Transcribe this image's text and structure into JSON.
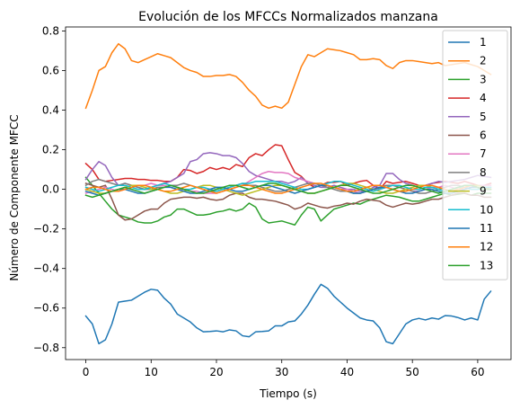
{
  "chart_data": {
    "type": "line",
    "title": "Evolución de los MFCCs Normalizados manzana",
    "xlabel": "Tiempo (s)",
    "ylabel": "Número de Componente MFCC",
    "xlim": [
      -3.1,
      65.1
    ],
    "ylim": [
      -0.86,
      0.82
    ],
    "xticks": [
      0,
      10,
      20,
      30,
      40,
      50,
      60
    ],
    "yticks": [
      -0.8,
      -0.6,
      -0.4,
      -0.2,
      0.0,
      0.2,
      0.4,
      0.6,
      0.8
    ],
    "ytick_labels": [
      "−0.8",
      "−0.6",
      "−0.4",
      "−0.2",
      "0.0",
      "0.2",
      "0.4",
      "0.6",
      "0.8"
    ],
    "legend_position": "upper right",
    "grid": false,
    "x": [
      0,
      1,
      2,
      3,
      4,
      5,
      6,
      7,
      8,
      9,
      10,
      11,
      12,
      13,
      14,
      15,
      16,
      17,
      18,
      19,
      20,
      21,
      22,
      23,
      24,
      25,
      26,
      27,
      28,
      29,
      30,
      31,
      32,
      33,
      34,
      35,
      36,
      37,
      38,
      39,
      40,
      41,
      42,
      43,
      44,
      45,
      46,
      47,
      48,
      49,
      50,
      51,
      52,
      53,
      54,
      55,
      56,
      57,
      58,
      59,
      60,
      61,
      62
    ],
    "series": [
      {
        "name": "1",
        "color": "#1f77b4",
        "values": [
          -0.64,
          -0.68,
          -0.78,
          -0.76,
          -0.68,
          -0.57,
          -0.565,
          -0.56,
          -0.54,
          -0.52,
          -0.505,
          -0.51,
          -0.55,
          -0.58,
          -0.63,
          -0.65,
          -0.67,
          -0.7,
          -0.72,
          -0.718,
          -0.715,
          -0.72,
          -0.71,
          -0.715,
          -0.74,
          -0.745,
          -0.72,
          -0.718,
          -0.715,
          -0.69,
          -0.69,
          -0.67,
          -0.665,
          -0.63,
          -0.585,
          -0.53,
          -0.48,
          -0.5,
          -0.54,
          -0.57,
          -0.6,
          -0.625,
          -0.65,
          -0.66,
          -0.665,
          -0.7,
          -0.77,
          -0.78,
          -0.73,
          -0.68,
          -0.66,
          -0.652,
          -0.66,
          -0.65,
          -0.656,
          -0.638,
          -0.64,
          -0.648,
          -0.66,
          -0.65,
          -0.66,
          -0.555,
          -0.515
        ]
      },
      {
        "name": "2",
        "color": "#ff7f0e",
        "values": [
          0.41,
          0.5,
          0.6,
          0.62,
          0.69,
          0.735,
          0.71,
          0.65,
          0.64,
          0.655,
          0.67,
          0.685,
          0.675,
          0.665,
          0.64,
          0.615,
          0.6,
          0.59,
          0.57,
          0.57,
          0.575,
          0.575,
          0.58,
          0.57,
          0.54,
          0.5,
          0.47,
          0.425,
          0.41,
          0.42,
          0.41,
          0.44,
          0.53,
          0.62,
          0.68,
          0.67,
          0.69,
          0.71,
          0.705,
          0.7,
          0.69,
          0.68,
          0.655,
          0.655,
          0.66,
          0.655,
          0.625,
          0.61,
          0.64,
          0.65,
          0.65,
          0.645,
          0.64,
          0.635,
          0.64,
          0.625,
          0.63,
          0.635,
          0.64,
          0.63,
          0.62,
          0.6,
          0.58
        ]
      },
      {
        "name": "3",
        "color": "#2ca02c",
        "values": [
          0.06,
          0.02,
          -0.02,
          -0.06,
          -0.1,
          -0.13,
          -0.14,
          -0.15,
          -0.165,
          -0.17,
          -0.17,
          -0.16,
          -0.14,
          -0.13,
          -0.1,
          -0.1,
          -0.115,
          -0.13,
          -0.13,
          -0.125,
          -0.115,
          -0.11,
          -0.1,
          -0.11,
          -0.1,
          -0.07,
          -0.09,
          -0.15,
          -0.17,
          -0.165,
          -0.16,
          -0.17,
          -0.18,
          -0.13,
          -0.09,
          -0.1,
          -0.16,
          -0.13,
          -0.1,
          -0.09,
          -0.08,
          -0.07,
          -0.075,
          -0.06,
          -0.05,
          -0.04,
          -0.03,
          -0.035,
          -0.04,
          -0.05,
          -0.06,
          -0.06,
          -0.05,
          -0.04,
          -0.03,
          -0.02,
          -0.03,
          -0.025,
          -0.02,
          -0.03,
          -0.02,
          -0.02,
          -0.02
        ]
      },
      {
        "name": "4",
        "color": "#d62728",
        "values": [
          0.13,
          0.1,
          0.05,
          0.04,
          0.045,
          0.05,
          0.055,
          0.055,
          0.05,
          0.05,
          0.045,
          0.045,
          0.04,
          0.04,
          0.06,
          0.1,
          0.095,
          0.08,
          0.09,
          0.11,
          0.1,
          0.11,
          0.1,
          0.125,
          0.115,
          0.16,
          0.18,
          0.17,
          0.2,
          0.225,
          0.22,
          0.15,
          0.085,
          0.065,
          0.03,
          0.01,
          0.02,
          0.035,
          0.035,
          0.04,
          0.02,
          0.03,
          0.04,
          0.045,
          0.02,
          0.0,
          0.04,
          0.03,
          0.035,
          0.04,
          0.03,
          0.02,
          0.02,
          0.03,
          0.035,
          0.04,
          0.035,
          0.03,
          0.04,
          0.03,
          0.02,
          0.02,
          0.03
        ]
      },
      {
        "name": "5",
        "color": "#9467bd",
        "values": [
          0.05,
          0.1,
          0.14,
          0.12,
          0.06,
          0.02,
          0.03,
          0.02,
          0.01,
          0.0,
          0.01,
          0.02,
          0.03,
          0.04,
          0.06,
          0.08,
          0.14,
          0.15,
          0.18,
          0.185,
          0.18,
          0.17,
          0.17,
          0.16,
          0.13,
          0.09,
          0.07,
          0.06,
          0.05,
          0.04,
          0.04,
          0.03,
          0.04,
          0.06,
          0.03,
          0.02,
          0.01,
          0.01,
          0.02,
          0.01,
          0.0,
          0.0,
          -0.01,
          -0.01,
          0.01,
          0.02,
          0.08,
          0.08,
          0.05,
          0.03,
          0.02,
          0.01,
          0.02,
          0.03,
          0.04,
          0.035,
          0.04,
          0.045,
          0.05,
          0.06,
          0.07,
          0.065,
          0.06
        ]
      },
      {
        "name": "6",
        "color": "#8c564b",
        "values": [
          0.03,
          0.02,
          0.01,
          0.02,
          -0.05,
          -0.13,
          -0.155,
          -0.15,
          -0.13,
          -0.11,
          -0.1,
          -0.1,
          -0.07,
          -0.05,
          -0.045,
          -0.04,
          -0.04,
          -0.045,
          -0.04,
          -0.05,
          -0.055,
          -0.05,
          -0.03,
          -0.02,
          -0.02,
          -0.04,
          -0.05,
          -0.05,
          -0.055,
          -0.06,
          -0.07,
          -0.08,
          -0.1,
          -0.09,
          -0.07,
          -0.08,
          -0.09,
          -0.095,
          -0.085,
          -0.08,
          -0.07,
          -0.075,
          -0.06,
          -0.05,
          -0.055,
          -0.06,
          -0.08,
          -0.09,
          -0.08,
          -0.07,
          -0.075,
          -0.07,
          -0.06,
          -0.05,
          -0.05,
          -0.04,
          -0.03,
          -0.02,
          -0.02,
          -0.03,
          -0.03,
          -0.04,
          -0.04
        ]
      },
      {
        "name": "7",
        "color": "#e377c2",
        "values": [
          -0.02,
          -0.01,
          0.0,
          0.01,
          0.0,
          -0.01,
          0.0,
          0.01,
          0.02,
          0.02,
          0.03,
          0.02,
          0.02,
          0.01,
          0.0,
          0.0,
          -0.01,
          -0.01,
          -0.02,
          -0.02,
          -0.02,
          -0.01,
          0.0,
          0.01,
          0.02,
          0.04,
          0.06,
          0.08,
          0.09,
          0.085,
          0.085,
          0.08,
          0.06,
          0.05,
          0.04,
          0.03,
          0.02,
          0.01,
          0.01,
          0.0,
          0.0,
          -0.01,
          -0.02,
          -0.01,
          0.0,
          0.0,
          0.01,
          0.02,
          0.01,
          0.0,
          -0.01,
          -0.01,
          0.0,
          0.01,
          0.01,
          0.02,
          0.01,
          0.0,
          0.0,
          0.01,
          0.02,
          0.02,
          0.02
        ]
      },
      {
        "name": "8",
        "color": "#7f7f7f",
        "values": [
          0.02,
          0.04,
          0.05,
          0.04,
          0.03,
          0.02,
          0.03,
          0.02,
          0.01,
          0.0,
          0.0,
          0.01,
          0.01,
          0.02,
          0.02,
          0.03,
          0.02,
          0.01,
          0.0,
          -0.01,
          -0.01,
          0.0,
          0.01,
          0.02,
          0.03,
          0.02,
          0.02,
          0.01,
          0.0,
          -0.01,
          -0.01,
          0.0,
          0.01,
          0.02,
          0.03,
          0.03,
          0.02,
          0.01,
          0.0,
          -0.01,
          -0.01,
          -0.02,
          -0.02,
          -0.01,
          0.0,
          0.01,
          0.02,
          0.02,
          0.01,
          0.0,
          -0.01,
          -0.02,
          -0.02,
          -0.01,
          0.0,
          0.01,
          0.02,
          0.02,
          0.01,
          0.0,
          0.0,
          0.01,
          0.01
        ]
      },
      {
        "name": "9",
        "color": "#bcbd22",
        "values": [
          0.0,
          -0.01,
          -0.02,
          -0.02,
          -0.01,
          0.0,
          0.01,
          0.02,
          0.02,
          0.01,
          0.0,
          0.0,
          -0.01,
          -0.02,
          -0.02,
          -0.01,
          0.0,
          0.01,
          0.02,
          0.02,
          0.01,
          0.0,
          -0.01,
          -0.02,
          -0.03,
          -0.02,
          -0.01,
          0.0,
          0.01,
          0.02,
          0.02,
          0.01,
          0.0,
          -0.01,
          -0.02,
          -0.02,
          -0.01,
          0.0,
          0.01,
          0.02,
          0.03,
          0.03,
          0.02,
          0.01,
          0.0,
          -0.01,
          -0.02,
          -0.02,
          -0.01,
          0.0,
          0.01,
          0.02,
          0.02,
          0.01,
          0.0,
          -0.01,
          -0.01,
          0.0,
          0.01,
          0.02,
          0.02,
          0.01,
          0.0
        ]
      },
      {
        "name": "10",
        "color": "#17becf",
        "values": [
          0.01,
          0.0,
          -0.01,
          0.0,
          0.01,
          0.02,
          0.02,
          0.01,
          0.0,
          0.0,
          0.01,
          0.02,
          0.03,
          0.02,
          0.01,
          0.0,
          0.0,
          0.01,
          0.01,
          0.0,
          -0.01,
          0.0,
          0.01,
          0.02,
          0.03,
          0.03,
          0.04,
          0.04,
          0.04,
          0.04,
          0.03,
          0.02,
          0.01,
          0.0,
          0.0,
          0.01,
          0.02,
          0.03,
          0.04,
          0.04,
          0.03,
          0.02,
          0.01,
          0.0,
          -0.01,
          0.0,
          0.01,
          0.02,
          0.02,
          0.01,
          0.0,
          0.0,
          0.01,
          0.01,
          0.0,
          -0.01,
          0.0,
          0.01,
          0.01,
          0.0,
          0.0,
          0.01,
          0.01
        ]
      },
      {
        "name": "11",
        "color": "#1f77b4",
        "values": [
          -0.01,
          -0.02,
          -0.03,
          -0.02,
          -0.01,
          0.0,
          0.0,
          -0.01,
          -0.02,
          -0.02,
          -0.01,
          0.0,
          0.01,
          0.01,
          0.0,
          -0.01,
          -0.02,
          -0.02,
          -0.01,
          0.0,
          0.01,
          0.01,
          0.0,
          -0.01,
          -0.01,
          0.0,
          0.01,
          0.02,
          0.02,
          0.01,
          0.0,
          -0.01,
          -0.02,
          -0.01,
          0.0,
          0.01,
          0.02,
          0.02,
          0.01,
          0.0,
          -0.01,
          -0.02,
          -0.02,
          -0.01,
          0.0,
          0.01,
          0.01,
          0.0,
          -0.01,
          -0.02,
          -0.02,
          -0.01,
          0.0,
          0.0,
          -0.01,
          -0.02,
          -0.02,
          -0.01,
          0.0,
          0.01,
          0.01,
          0.0,
          0.0
        ]
      },
      {
        "name": "12",
        "color": "#ff7f0e",
        "values": [
          0.0,
          0.01,
          0.01,
          0.0,
          -0.01,
          -0.01,
          0.0,
          0.01,
          0.02,
          0.02,
          0.01,
          0.0,
          -0.01,
          -0.01,
          0.0,
          0.01,
          0.02,
          0.01,
          0.0,
          -0.01,
          -0.02,
          -0.01,
          0.0,
          0.01,
          0.02,
          0.02,
          0.01,
          0.0,
          -0.01,
          -0.02,
          -0.02,
          -0.01,
          0.0,
          0.01,
          0.02,
          0.03,
          0.03,
          0.02,
          0.01,
          0.0,
          -0.01,
          -0.01,
          0.0,
          0.01,
          0.02,
          0.02,
          0.01,
          0.0,
          -0.01,
          -0.01,
          0.0,
          0.01,
          0.02,
          0.02,
          0.01,
          0.0,
          -0.01,
          0.0,
          0.01,
          0.02,
          0.01,
          0.0,
          0.0
        ]
      },
      {
        "name": "13",
        "color": "#2ca02c",
        "values": [
          -0.03,
          -0.04,
          -0.03,
          -0.02,
          -0.01,
          0.0,
          0.01,
          0.0,
          -0.01,
          -0.02,
          -0.01,
          0.0,
          0.01,
          0.02,
          0.01,
          0.0,
          -0.01,
          -0.02,
          -0.02,
          -0.01,
          0.0,
          0.01,
          0.02,
          0.02,
          0.01,
          0.0,
          0.01,
          0.02,
          0.03,
          0.03,
          0.02,
          0.01,
          0.0,
          -0.01,
          -0.02,
          -0.02,
          -0.01,
          0.0,
          0.01,
          0.02,
          0.02,
          0.01,
          0.0,
          -0.01,
          -0.02,
          -0.02,
          -0.01,
          0.0,
          0.01,
          0.02,
          0.02,
          0.01,
          0.0,
          -0.01,
          -0.02,
          -0.01,
          0.0,
          0.01,
          0.02,
          0.02,
          0.01,
          0.0,
          0.0
        ]
      }
    ]
  }
}
